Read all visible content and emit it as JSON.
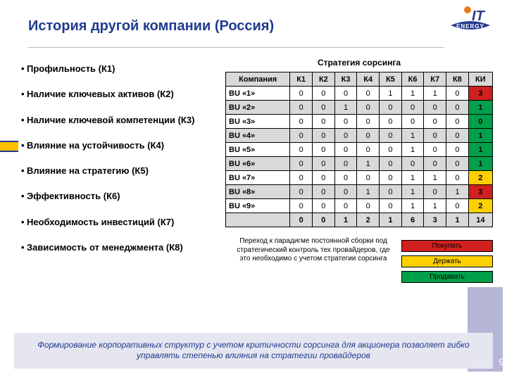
{
  "title": "История другой компании (Россия)",
  "logo": {
    "top_text": "IT",
    "bottom_text": "ENERGY",
    "dot_color": "#e87b1c",
    "main_color": "#2a3a8f"
  },
  "criteria": [
    "Профильность (К1)",
    "Наличие ключевых активов (К2)",
    "Наличие ключевой компетенции (К3)",
    " Влияние на устойчивость (К4)",
    " Влияние на стратегию (К5)",
    "Эффективность (К6)",
    " Необходимость инвестиций (К7)",
    "Зависимость от менеджмента (К8)"
  ],
  "table_title": "Стратегия сорсинга",
  "columns": [
    "Компания",
    "К1",
    "К2",
    "К3",
    "К4",
    "К5",
    "К6",
    "К7",
    "К8",
    "КИ"
  ],
  "rows": [
    {
      "name": "BU «1»",
      "v": [
        0,
        0,
        0,
        0,
        1,
        1,
        1,
        0
      ],
      "ki": 3,
      "ki_color": "#d02020",
      "alt": false
    },
    {
      "name": "BU «2»",
      "v": [
        0,
        0,
        1,
        0,
        0,
        0,
        0,
        0
      ],
      "ki": 1,
      "ki_color": "#00a04a",
      "alt": true
    },
    {
      "name": "BU «3»",
      "v": [
        0,
        0,
        0,
        0,
        0,
        0,
        0,
        0
      ],
      "ki": 0,
      "ki_color": "#00a04a",
      "alt": false
    },
    {
      "name": "BU «4»",
      "v": [
        0,
        0,
        0,
        0,
        0,
        1,
        0,
        0
      ],
      "ki": 1,
      "ki_color": "#00a04a",
      "alt": true
    },
    {
      "name": "BU «5»",
      "v": [
        0,
        0,
        0,
        0,
        0,
        1,
        0,
        0
      ],
      "ki": 1,
      "ki_color": "#00a04a",
      "alt": false
    },
    {
      "name": "BU «6»",
      "v": [
        0,
        0,
        0,
        1,
        0,
        0,
        0,
        0
      ],
      "ki": 1,
      "ki_color": "#00a04a",
      "alt": true
    },
    {
      "name": "BU «7»",
      "v": [
        0,
        0,
        0,
        0,
        0,
        1,
        1,
        0
      ],
      "ki": 2,
      "ki_color": "#ffd000",
      "alt": false
    },
    {
      "name": "BU «8»",
      "v": [
        0,
        0,
        0,
        1,
        0,
        1,
        0,
        1
      ],
      "ki": 3,
      "ki_color": "#d02020",
      "alt": true
    },
    {
      "name": "BU «9»",
      "v": [
        0,
        0,
        0,
        0,
        0,
        1,
        1,
        0
      ],
      "ki": 2,
      "ki_color": "#ffd000",
      "alt": false
    }
  ],
  "totals": {
    "v": [
      0,
      0,
      1,
      2,
      1,
      6,
      3,
      1
    ],
    "ki": 14
  },
  "under_text": "Переход к парадигме постоянной сборки под стратегический контроль тех провайдеров, где это необходимо с учетом стратегии сорсинга",
  "legend": [
    {
      "label": "Покупать",
      "color": "#d02020"
    },
    {
      "label": "Держать",
      "color": "#ffd000"
    },
    {
      "label": "Продавать",
      "color": "#00a04a"
    }
  ],
  "footer": "Формирование корпоративных структур с учетом критичности сорсинга для акционера позволяет гибко управлять степенью влияния на стратегии провайдеров",
  "page_number": "9"
}
